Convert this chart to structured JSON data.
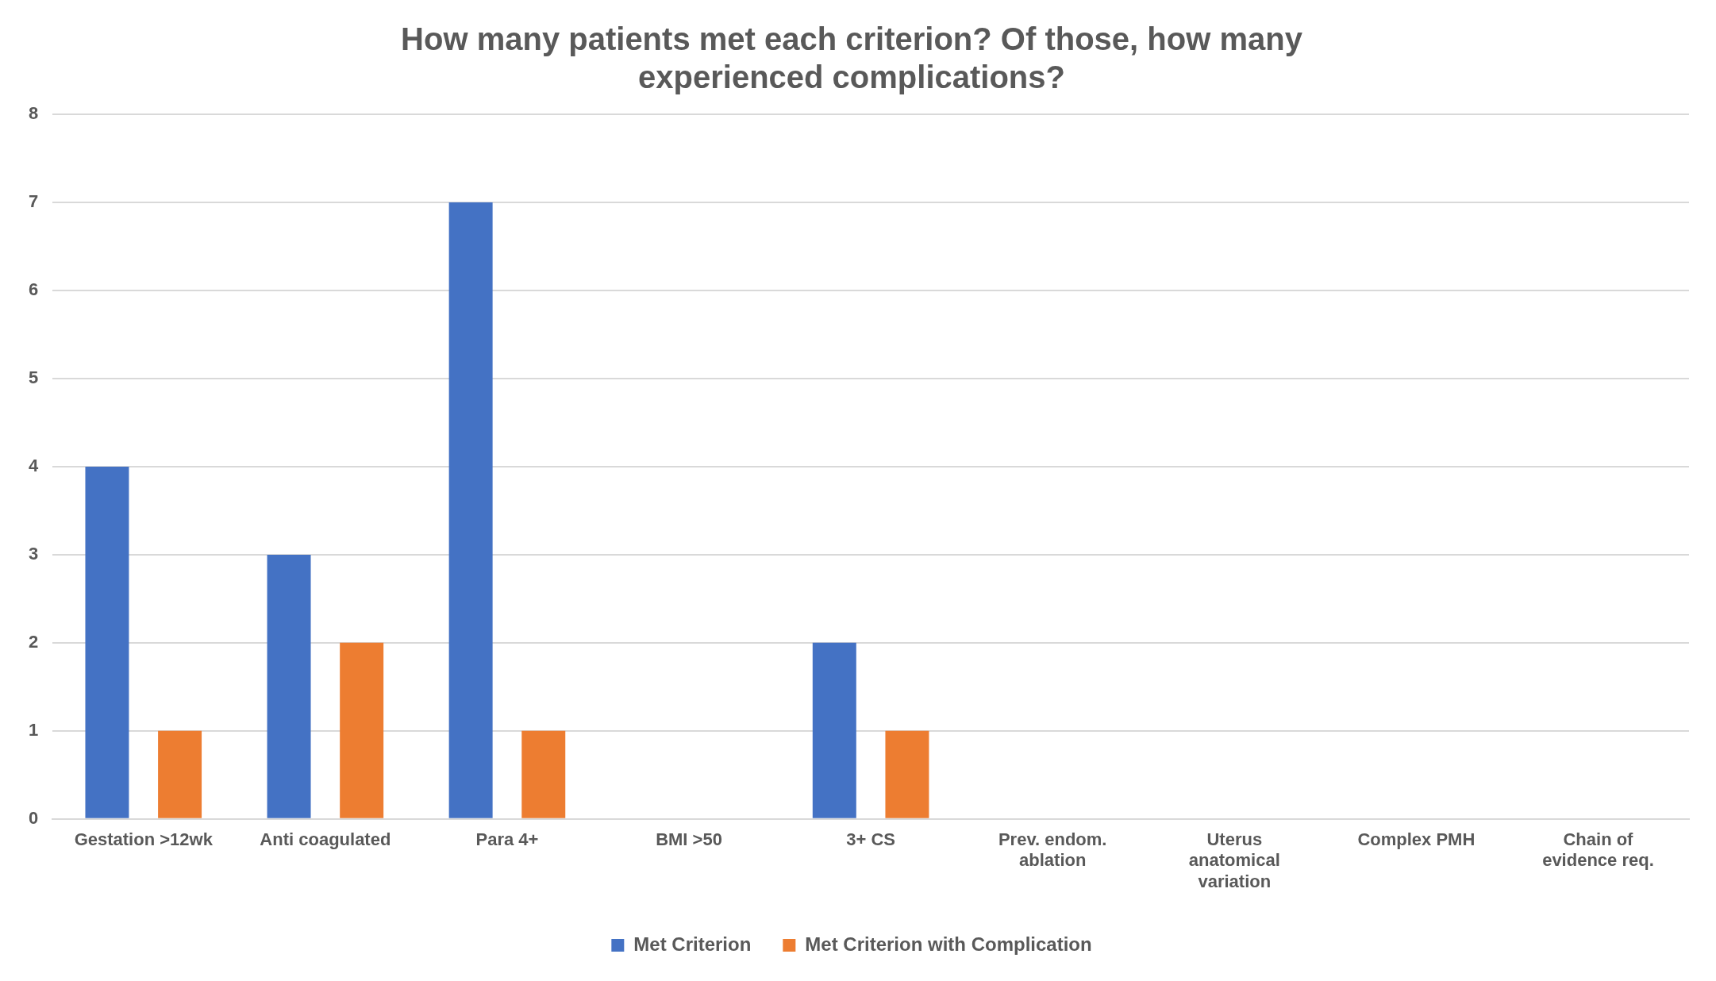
{
  "chart_data": {
    "type": "bar",
    "title": "How many patients met each criterion? Of those, how many experienced complications?",
    "categories": [
      "Gestation >12wk",
      "Anti coagulated",
      "Para 4+",
      "BMI >50",
      "3+ CS",
      "Prev. endom. ablation",
      "Uterus anatomical variation",
      "Complex PMH",
      "Chain of evidence req."
    ],
    "series": [
      {
        "name": "Met Criterion",
        "color": "#4472c4",
        "values": [
          4,
          3,
          7,
          0,
          2,
          0,
          0,
          0,
          0
        ]
      },
      {
        "name": "Met Criterion with Complication",
        "color": "#ed7d31",
        "values": [
          1,
          2,
          1,
          0,
          1,
          0,
          0,
          0,
          0
        ]
      }
    ],
    "ylim": [
      0,
      8
    ],
    "yticks": [
      0,
      1,
      2,
      3,
      4,
      5,
      6,
      7,
      8
    ],
    "grid": "y",
    "legend": "bottom"
  }
}
